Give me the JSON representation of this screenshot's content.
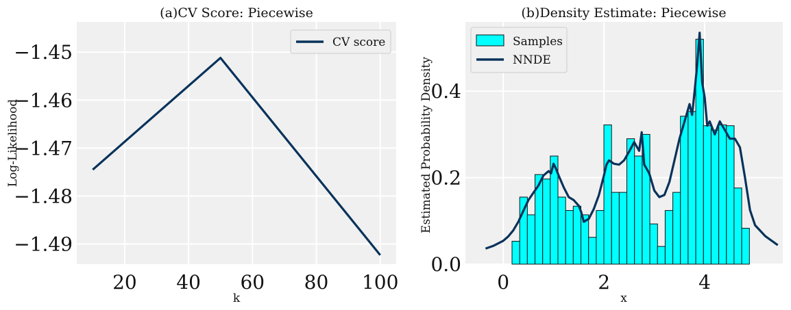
{
  "chart_data": [
    {
      "type": "line",
      "title": "(a)CV Score: Piecewise",
      "xlabel": "k",
      "ylabel": "Log-Likelihood",
      "xlim": [
        5,
        105
      ],
      "ylim": [
        -1.4942,
        -1.4437
      ],
      "xticks": [
        20,
        40,
        60,
        80,
        100
      ],
      "yticks": [
        -1.49,
        -1.48,
        -1.47,
        -1.46,
        -1.45
      ],
      "xtick_labels": [
        "20",
        "40",
        "60",
        "80",
        "100"
      ],
      "ytick_labels": [
        "−1.49",
        "−1.48",
        "−1.47",
        "−1.46",
        "−1.45"
      ],
      "grid": true,
      "legend_placement": "top-right",
      "series": [
        {
          "name": "CV score",
          "color": "#08325a",
          "x": [
            10,
            50,
            100
          ],
          "y": [
            -1.4745,
            -1.4512,
            -1.4923
          ]
        }
      ]
    },
    {
      "type": "bar",
      "title": "(b)Density Estimate: Piecewise",
      "xlabel": "x",
      "ylabel": "Estimated Probability Density",
      "xlim": [
        -0.75,
        5.55
      ],
      "ylim": [
        0,
        0.56
      ],
      "xticks": [
        0,
        2,
        4
      ],
      "yticks": [
        0.0,
        0.2,
        0.4
      ],
      "xtick_labels": [
        "0",
        "2",
        "4"
      ],
      "ytick_labels": [
        "0.0",
        "0.2",
        "0.4"
      ],
      "grid": true,
      "legend_placement": "top-left",
      "histogram": {
        "name": "Samples",
        "color": "#00ffff",
        "edge_color": "#111111",
        "bin_edges": [
          0.175,
          0.327,
          0.479,
          0.631,
          0.783,
          0.935,
          1.087,
          1.239,
          1.391,
          1.543,
          1.695,
          1.847,
          1.999,
          2.151,
          2.303,
          2.455,
          2.607,
          2.759,
          2.911,
          3.063,
          3.215,
          3.367,
          3.519,
          3.671,
          3.823,
          3.975,
          4.127,
          4.279,
          4.431,
          4.583,
          4.735,
          4.887
        ],
        "values": [
          0.053,
          0.155,
          0.114,
          0.207,
          0.197,
          0.25,
          0.155,
          0.124,
          0.134,
          0.114,
          0.062,
          0.124,
          0.322,
          0.166,
          0.166,
          0.29,
          0.25,
          0.3,
          0.093,
          0.041,
          0.124,
          0.166,
          0.342,
          0.353,
          0.52,
          0.32,
          0.31,
          0.322,
          0.32,
          0.176,
          0.083
        ]
      },
      "line": {
        "name": "NNDE",
        "color": "#08325a",
        "x": [
          -0.35,
          -0.2,
          0.0,
          0.1,
          0.2,
          0.3,
          0.4,
          0.5,
          0.6,
          0.7,
          0.8,
          0.9,
          0.95,
          1.0,
          1.05,
          1.1,
          1.2,
          1.3,
          1.4,
          1.5,
          1.55,
          1.6,
          1.7,
          1.8,
          1.9,
          2.0,
          2.05,
          2.1,
          2.2,
          2.3,
          2.4,
          2.5,
          2.6,
          2.7,
          2.75,
          2.8,
          2.9,
          3.0,
          3.1,
          3.2,
          3.3,
          3.4,
          3.5,
          3.6,
          3.7,
          3.75,
          3.8,
          3.85,
          3.9,
          3.95,
          4.0,
          4.05,
          4.1,
          4.2,
          4.3,
          4.4,
          4.5,
          4.6,
          4.7,
          4.8,
          4.9,
          5.0,
          5.2,
          5.45
        ],
        "y": [
          0.036,
          0.042,
          0.054,
          0.064,
          0.078,
          0.098,
          0.123,
          0.148,
          0.165,
          0.182,
          0.205,
          0.215,
          0.21,
          0.232,
          0.22,
          0.205,
          0.178,
          0.155,
          0.148,
          0.135,
          0.12,
          0.098,
          0.105,
          0.128,
          0.16,
          0.205,
          0.23,
          0.24,
          0.232,
          0.23,
          0.24,
          0.26,
          0.282,
          0.262,
          0.305,
          0.23,
          0.21,
          0.17,
          0.155,
          0.16,
          0.19,
          0.24,
          0.29,
          0.33,
          0.37,
          0.345,
          0.4,
          0.46,
          0.535,
          0.42,
          0.385,
          0.32,
          0.33,
          0.3,
          0.33,
          0.31,
          0.29,
          0.29,
          0.27,
          0.2,
          0.125,
          0.09,
          0.065,
          0.044
        ]
      }
    }
  ]
}
